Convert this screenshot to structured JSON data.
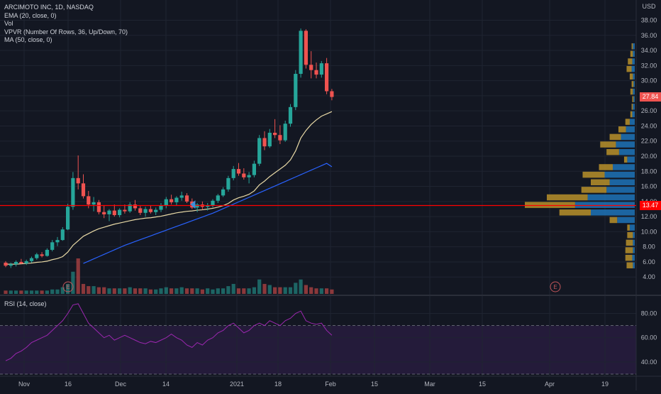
{
  "legend": {
    "symbol": "ARCIMOTO INC, 1D, NASDAQ",
    "ema": "EMA (20, close, 0)",
    "vol": "Vol",
    "vpvr": "VPVR (Number Of Rows, 36, Up/Down, 70)",
    "ma": "MA (50, close, 0)",
    "rsi": "RSI (14, close)"
  },
  "currency": "USD",
  "badges": {
    "last_price": "27.84",
    "line_price": "13.47"
  },
  "colors": {
    "up": "#26a69a",
    "down": "#ef5350",
    "ema": "#e8d9a6",
    "ma": "#2962ff",
    "rsi": "#9c27b0",
    "hline": "#ff0000",
    "vp_up": "#1f73b7",
    "vp_down": "#b8902a",
    "bg": "#131722"
  },
  "earnings_marker": "E",
  "chart_data": {
    "type": "candlestick",
    "y_ticks": [
      "4.00",
      "6.00",
      "8.00",
      "10.00",
      "12.00",
      "14.00",
      "16.00",
      "18.00",
      "20.00",
      "22.00",
      "24.00",
      "26.00",
      "28.00",
      "30.00",
      "32.00",
      "34.00",
      "36.00",
      "38.00"
    ],
    "x_ticks": [
      "Nov",
      "16",
      "Dec",
      "14",
      "2021",
      "18",
      "Feb",
      "15",
      "Mar",
      "15",
      "Apr",
      "19"
    ],
    "ylim": [
      2.3,
      39.5
    ],
    "hline": 13.47,
    "candles": [
      [
        5.9,
        6.1,
        5.3,
        5.5
      ],
      [
        5.5,
        5.9,
        5.2,
        5.7
      ],
      [
        5.7,
        6.2,
        5.4,
        6.0
      ],
      [
        6.0,
        6.4,
        5.7,
        5.8
      ],
      [
        5.8,
        6.3,
        5.6,
        6.1
      ],
      [
        6.1,
        6.7,
        5.9,
        6.5
      ],
      [
        6.5,
        7.2,
        6.3,
        7.0
      ],
      [
        7.0,
        7.3,
        6.6,
        6.8
      ],
      [
        6.8,
        7.8,
        6.7,
        7.6
      ],
      [
        7.6,
        8.9,
        7.4,
        8.6
      ],
      [
        8.6,
        9.3,
        8.1,
        8.9
      ],
      [
        8.9,
        10.6,
        8.8,
        10.3
      ],
      [
        10.3,
        13.7,
        10.2,
        13.3
      ],
      [
        13.3,
        17.9,
        12.9,
        17.1
      ],
      [
        17.1,
        20.1,
        15.6,
        16.4
      ],
      [
        16.4,
        17.6,
        14.4,
        14.7
      ],
      [
        14.7,
        15.4,
        13.1,
        13.6
      ],
      [
        13.6,
        14.6,
        12.7,
        13.9
      ],
      [
        13.9,
        14.2,
        12.3,
        12.6
      ],
      [
        12.6,
        13.5,
        11.8,
        12.3
      ],
      [
        12.3,
        13.0,
        11.4,
        12.8
      ],
      [
        12.8,
        13.6,
        12.0,
        12.2
      ],
      [
        12.2,
        13.1,
        11.9,
        12.9
      ],
      [
        12.9,
        13.6,
        12.4,
        12.7
      ],
      [
        12.7,
        13.9,
        12.5,
        13.6
      ],
      [
        13.6,
        14.2,
        12.8,
        13.1
      ],
      [
        13.1,
        13.4,
        12.2,
        12.5
      ],
      [
        12.5,
        13.3,
        12.0,
        13.0
      ],
      [
        13.0,
        13.5,
        12.4,
        12.6
      ],
      [
        12.6,
        13.2,
        12.2,
        12.9
      ],
      [
        12.9,
        13.8,
        12.6,
        13.5
      ],
      [
        13.5,
        14.6,
        13.1,
        14.3
      ],
      [
        14.3,
        14.9,
        13.6,
        13.9
      ],
      [
        13.9,
        14.7,
        13.5,
        14.5
      ],
      [
        14.5,
        15.3,
        14.1,
        14.8
      ],
      [
        14.8,
        15.1,
        13.8,
        14.0
      ],
      [
        14.0,
        14.4,
        13.0,
        13.2
      ],
      [
        13.2,
        13.8,
        12.6,
        13.6
      ],
      [
        13.6,
        14.0,
        12.9,
        13.3
      ],
      [
        13.3,
        13.8,
        12.8,
        13.5
      ],
      [
        13.5,
        14.3,
        13.2,
        14.1
      ],
      [
        14.1,
        15.0,
        13.8,
        14.8
      ],
      [
        14.8,
        15.9,
        14.6,
        15.6
      ],
      [
        15.6,
        17.4,
        15.3,
        17.1
      ],
      [
        17.1,
        18.7,
        16.8,
        18.3
      ],
      [
        18.3,
        19.1,
        17.4,
        17.7
      ],
      [
        17.7,
        18.4,
        16.9,
        17.2
      ],
      [
        17.2,
        17.9,
        16.4,
        17.5
      ],
      [
        17.5,
        19.4,
        17.2,
        19.0
      ],
      [
        19.0,
        22.8,
        18.7,
        22.4
      ],
      [
        22.4,
        23.3,
        20.8,
        21.3
      ],
      [
        21.3,
        23.6,
        21.1,
        23.1
      ],
      [
        23.1,
        24.9,
        22.4,
        22.8
      ],
      [
        22.8,
        24.1,
        21.6,
        22.1
      ],
      [
        22.1,
        24.7,
        21.9,
        24.3
      ],
      [
        24.3,
        26.9,
        23.9,
        26.5
      ],
      [
        26.5,
        31.4,
        26.1,
        30.9
      ],
      [
        30.9,
        36.9,
        30.4,
        36.6
      ],
      [
        36.6,
        36.8,
        31.6,
        32.1
      ],
      [
        32.1,
        33.9,
        30.3,
        31.4
      ],
      [
        31.4,
        32.4,
        30.3,
        30.8
      ],
      [
        30.8,
        32.6,
        30.4,
        32.3
      ],
      [
        32.3,
        33.0,
        28.2,
        28.6
      ],
      [
        28.6,
        28.9,
        27.4,
        27.84
      ]
    ],
    "volume": [
      3,
      3,
      3,
      3,
      3,
      3,
      3,
      3,
      3,
      4,
      4,
      6,
      9,
      20,
      32,
      9,
      7,
      7,
      6,
      6,
      5,
      5,
      5,
      5,
      6,
      5,
      5,
      5,
      4,
      4,
      5,
      6,
      5,
      5,
      6,
      5,
      5,
      5,
      4,
      5,
      4,
      5,
      5,
      7,
      9,
      5,
      5,
      5,
      6,
      13,
      9,
      8,
      6,
      6,
      6,
      6,
      10,
      13,
      8,
      6,
      5,
      5,
      5,
      4
    ],
    "ema20": [
      5.7,
      5.7,
      5.7,
      5.75,
      5.8,
      5.85,
      5.95,
      6.0,
      6.1,
      6.3,
      6.45,
      6.7,
      7.3,
      8.2,
      8.8,
      9.4,
      9.75,
      10.1,
      10.4,
      10.6,
      10.8,
      11.0,
      11.15,
      11.3,
      11.45,
      11.6,
      11.7,
      11.8,
      11.85,
      11.95,
      12.05,
      12.2,
      12.35,
      12.5,
      12.6,
      12.7,
      12.75,
      12.85,
      12.9,
      13.0,
      13.1,
      13.25,
      13.45,
      13.75,
      14.2,
      14.5,
      14.7,
      14.95,
      15.4,
      16.2,
      16.7,
      17.3,
      17.8,
      18.3,
      18.8,
      19.5,
      20.7,
      22.4,
      23.4,
      24.2,
      24.8,
      25.3,
      25.6,
      25.9
    ],
    "ma50": [
      null,
      null,
      null,
      null,
      null,
      null,
      null,
      null,
      null,
      null,
      null,
      null,
      null,
      null,
      null,
      5.8,
      6.1,
      6.4,
      6.7,
      7.0,
      7.3,
      7.6,
      7.9,
      8.2,
      8.45,
      8.7,
      8.95,
      9.2,
      9.45,
      9.7,
      9.95,
      10.2,
      10.45,
      10.7,
      10.95,
      11.2,
      11.45,
      11.7,
      11.95,
      12.2,
      12.45,
      12.75,
      13.05,
      13.35,
      13.65,
      13.95,
      14.25,
      14.55,
      14.85,
      15.15,
      15.45,
      15.75,
      16.05,
      16.35,
      16.65,
      16.95,
      17.25,
      17.55,
      17.85,
      18.15,
      18.45,
      18.75,
      19.05,
      18.6
    ],
    "rsi": {
      "ylim": [
        30,
        92
      ],
      "ticks": [
        "40.00",
        "60.00",
        "80.00"
      ],
      "bands": [
        70,
        30
      ],
      "values": [
        41,
        43,
        47,
        49,
        52,
        56,
        58,
        60,
        62,
        66,
        70,
        74,
        80,
        87,
        88,
        80,
        72,
        68,
        64,
        60,
        62,
        58,
        60,
        62,
        60,
        58,
        56,
        55,
        57,
        56,
        58,
        60,
        63,
        60,
        58,
        54,
        52,
        56,
        54,
        58,
        60,
        64,
        66,
        70,
        72,
        68,
        64,
        66,
        70,
        72,
        70,
        74,
        72,
        70,
        74,
        76,
        80,
        82,
        74,
        72,
        71,
        72,
        66,
        62
      ]
    },
    "volume_profile": [
      {
        "price": 5.5,
        "up": 3,
        "down": 10
      },
      {
        "price": 6.5,
        "up": 4,
        "down": 11
      },
      {
        "price": 7.5,
        "up": 3,
        "down": 12
      },
      {
        "price": 8.5,
        "up": 3,
        "down": 11
      },
      {
        "price": 9.5,
        "up": 3,
        "down": 9
      },
      {
        "price": 10.5,
        "up": 8,
        "down": 4
      },
      {
        "price": 11.5,
        "up": 28,
        "down": 12
      },
      {
        "price": 12.5,
        "up": 70,
        "down": 50
      },
      {
        "price": 13.5,
        "up": 95,
        "down": 80
      },
      {
        "price": 14.5,
        "up": 75,
        "down": 65
      },
      {
        "price": 15.5,
        "up": 45,
        "down": 40
      },
      {
        "price": 16.5,
        "up": 40,
        "down": 30
      },
      {
        "price": 17.5,
        "up": 48,
        "down": 35
      },
      {
        "price": 18.5,
        "up": 35,
        "down": 22
      },
      {
        "price": 19.5,
        "up": 12,
        "down": 5
      },
      {
        "price": 20.5,
        "up": 25,
        "down": 20
      },
      {
        "price": 21.5,
        "up": 30,
        "down": 25
      },
      {
        "price": 22.5,
        "up": 22,
        "down": 18
      },
      {
        "price": 23.5,
        "up": 14,
        "down": 12
      },
      {
        "price": 24.5,
        "up": 8,
        "down": 7
      },
      {
        "price": 25.5,
        "up": 4,
        "down": 3
      },
      {
        "price": 26.5,
        "up": 3,
        "down": 2
      },
      {
        "price": 27.5,
        "up": 2,
        "down": 2
      },
      {
        "price": 28.5,
        "up": 3,
        "down": 4
      },
      {
        "price": 29.5,
        "up": 2,
        "down": 3
      },
      {
        "price": 30.5,
        "up": 3,
        "down": 5
      },
      {
        "price": 31.5,
        "up": 5,
        "down": 8
      },
      {
        "price": 32.5,
        "up": 4,
        "down": 7
      },
      {
        "price": 33.5,
        "up": 3,
        "down": 4
      },
      {
        "price": 34.5,
        "up": 3,
        "down": 2
      }
    ]
  }
}
